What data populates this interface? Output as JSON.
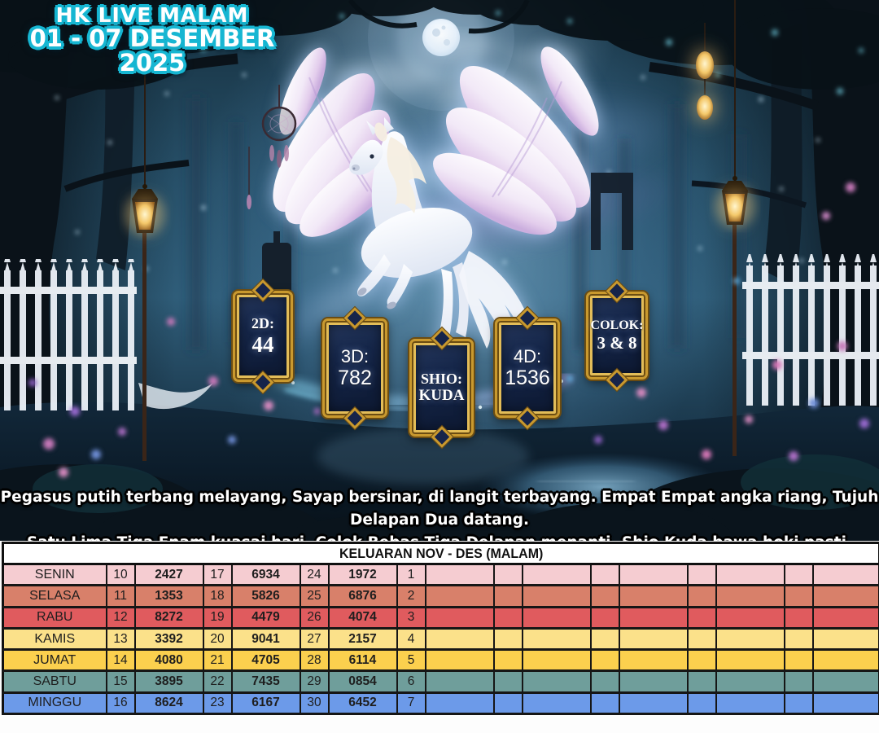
{
  "title": {
    "line1": "HK LIVE MALAM",
    "line2": "01 - 07 DESEMBER 2025"
  },
  "plaques": [
    {
      "label": "2D:",
      "value": "44"
    },
    {
      "label": "3D:",
      "value": "782"
    },
    {
      "label": "SHIO:",
      "value": "KUDA"
    },
    {
      "label": "4D:",
      "value": "1536"
    },
    {
      "label": "COLOK:",
      "value": "3 & 8"
    }
  ],
  "poem": {
    "line1": "Pegasus putih terbang melayang, Sayap bersinar, di langit terbayang. Empat Empat angka riang, Tujuh Delapan Dua datang.",
    "line2": "Satu Lima Tiga Enam kuasai hari, Colok Bebas Tiga Delapan menanti. Shio Kuda bawa hoki pasti."
  },
  "table": {
    "title": "KELUARAN NOV - DES (MALAM)",
    "rows": [
      {
        "day": "SENIN",
        "color": "#f5ccd1",
        "cells": [
          "10",
          "2427",
          "17",
          "6934",
          "24",
          "1972",
          "1",
          "",
          "",
          "",
          "",
          "",
          "",
          "",
          "",
          ""
        ]
      },
      {
        "day": "SELASA",
        "color": "#d8806a",
        "cells": [
          "11",
          "1353",
          "18",
          "5826",
          "25",
          "6876",
          "2",
          "",
          "",
          "",
          "",
          "",
          "",
          "",
          "",
          ""
        ]
      },
      {
        "day": "RABU",
        "color": "#e05b5e",
        "cells": [
          "12",
          "8272",
          "19",
          "4479",
          "26",
          "4074",
          "3",
          "",
          "",
          "",
          "",
          "",
          "",
          "",
          "",
          ""
        ]
      },
      {
        "day": "KAMIS",
        "color": "#fbe18a",
        "cells": [
          "13",
          "3392",
          "20",
          "9041",
          "27",
          "2157",
          "4",
          "",
          "",
          "",
          "",
          "",
          "",
          "",
          "",
          ""
        ]
      },
      {
        "day": "JUMAT",
        "color": "#fbd04e",
        "cells": [
          "14",
          "4080",
          "21",
          "4705",
          "28",
          "6114",
          "5",
          "",
          "",
          "",
          "",
          "",
          "",
          "",
          "",
          ""
        ]
      },
      {
        "day": "SABTU",
        "color": "#6f9e9b",
        "cells": [
          "15",
          "3895",
          "22",
          "7435",
          "29",
          "0854",
          "6",
          "",
          "",
          "",
          "",
          "",
          "",
          "",
          "",
          ""
        ]
      },
      {
        "day": "MINGGU",
        "color": "#6c9ae9",
        "cells": [
          "16",
          "8624",
          "23",
          "6167",
          "30",
          "6452",
          "7",
          "",
          "",
          "",
          "",
          "",
          "",
          "",
          "",
          ""
        ]
      }
    ]
  },
  "colors": {
    "title_outline": "#16b6d2",
    "plaque_gold": "#c9992e",
    "plaque_navy": "#101d3a",
    "table_border": "#101010"
  }
}
